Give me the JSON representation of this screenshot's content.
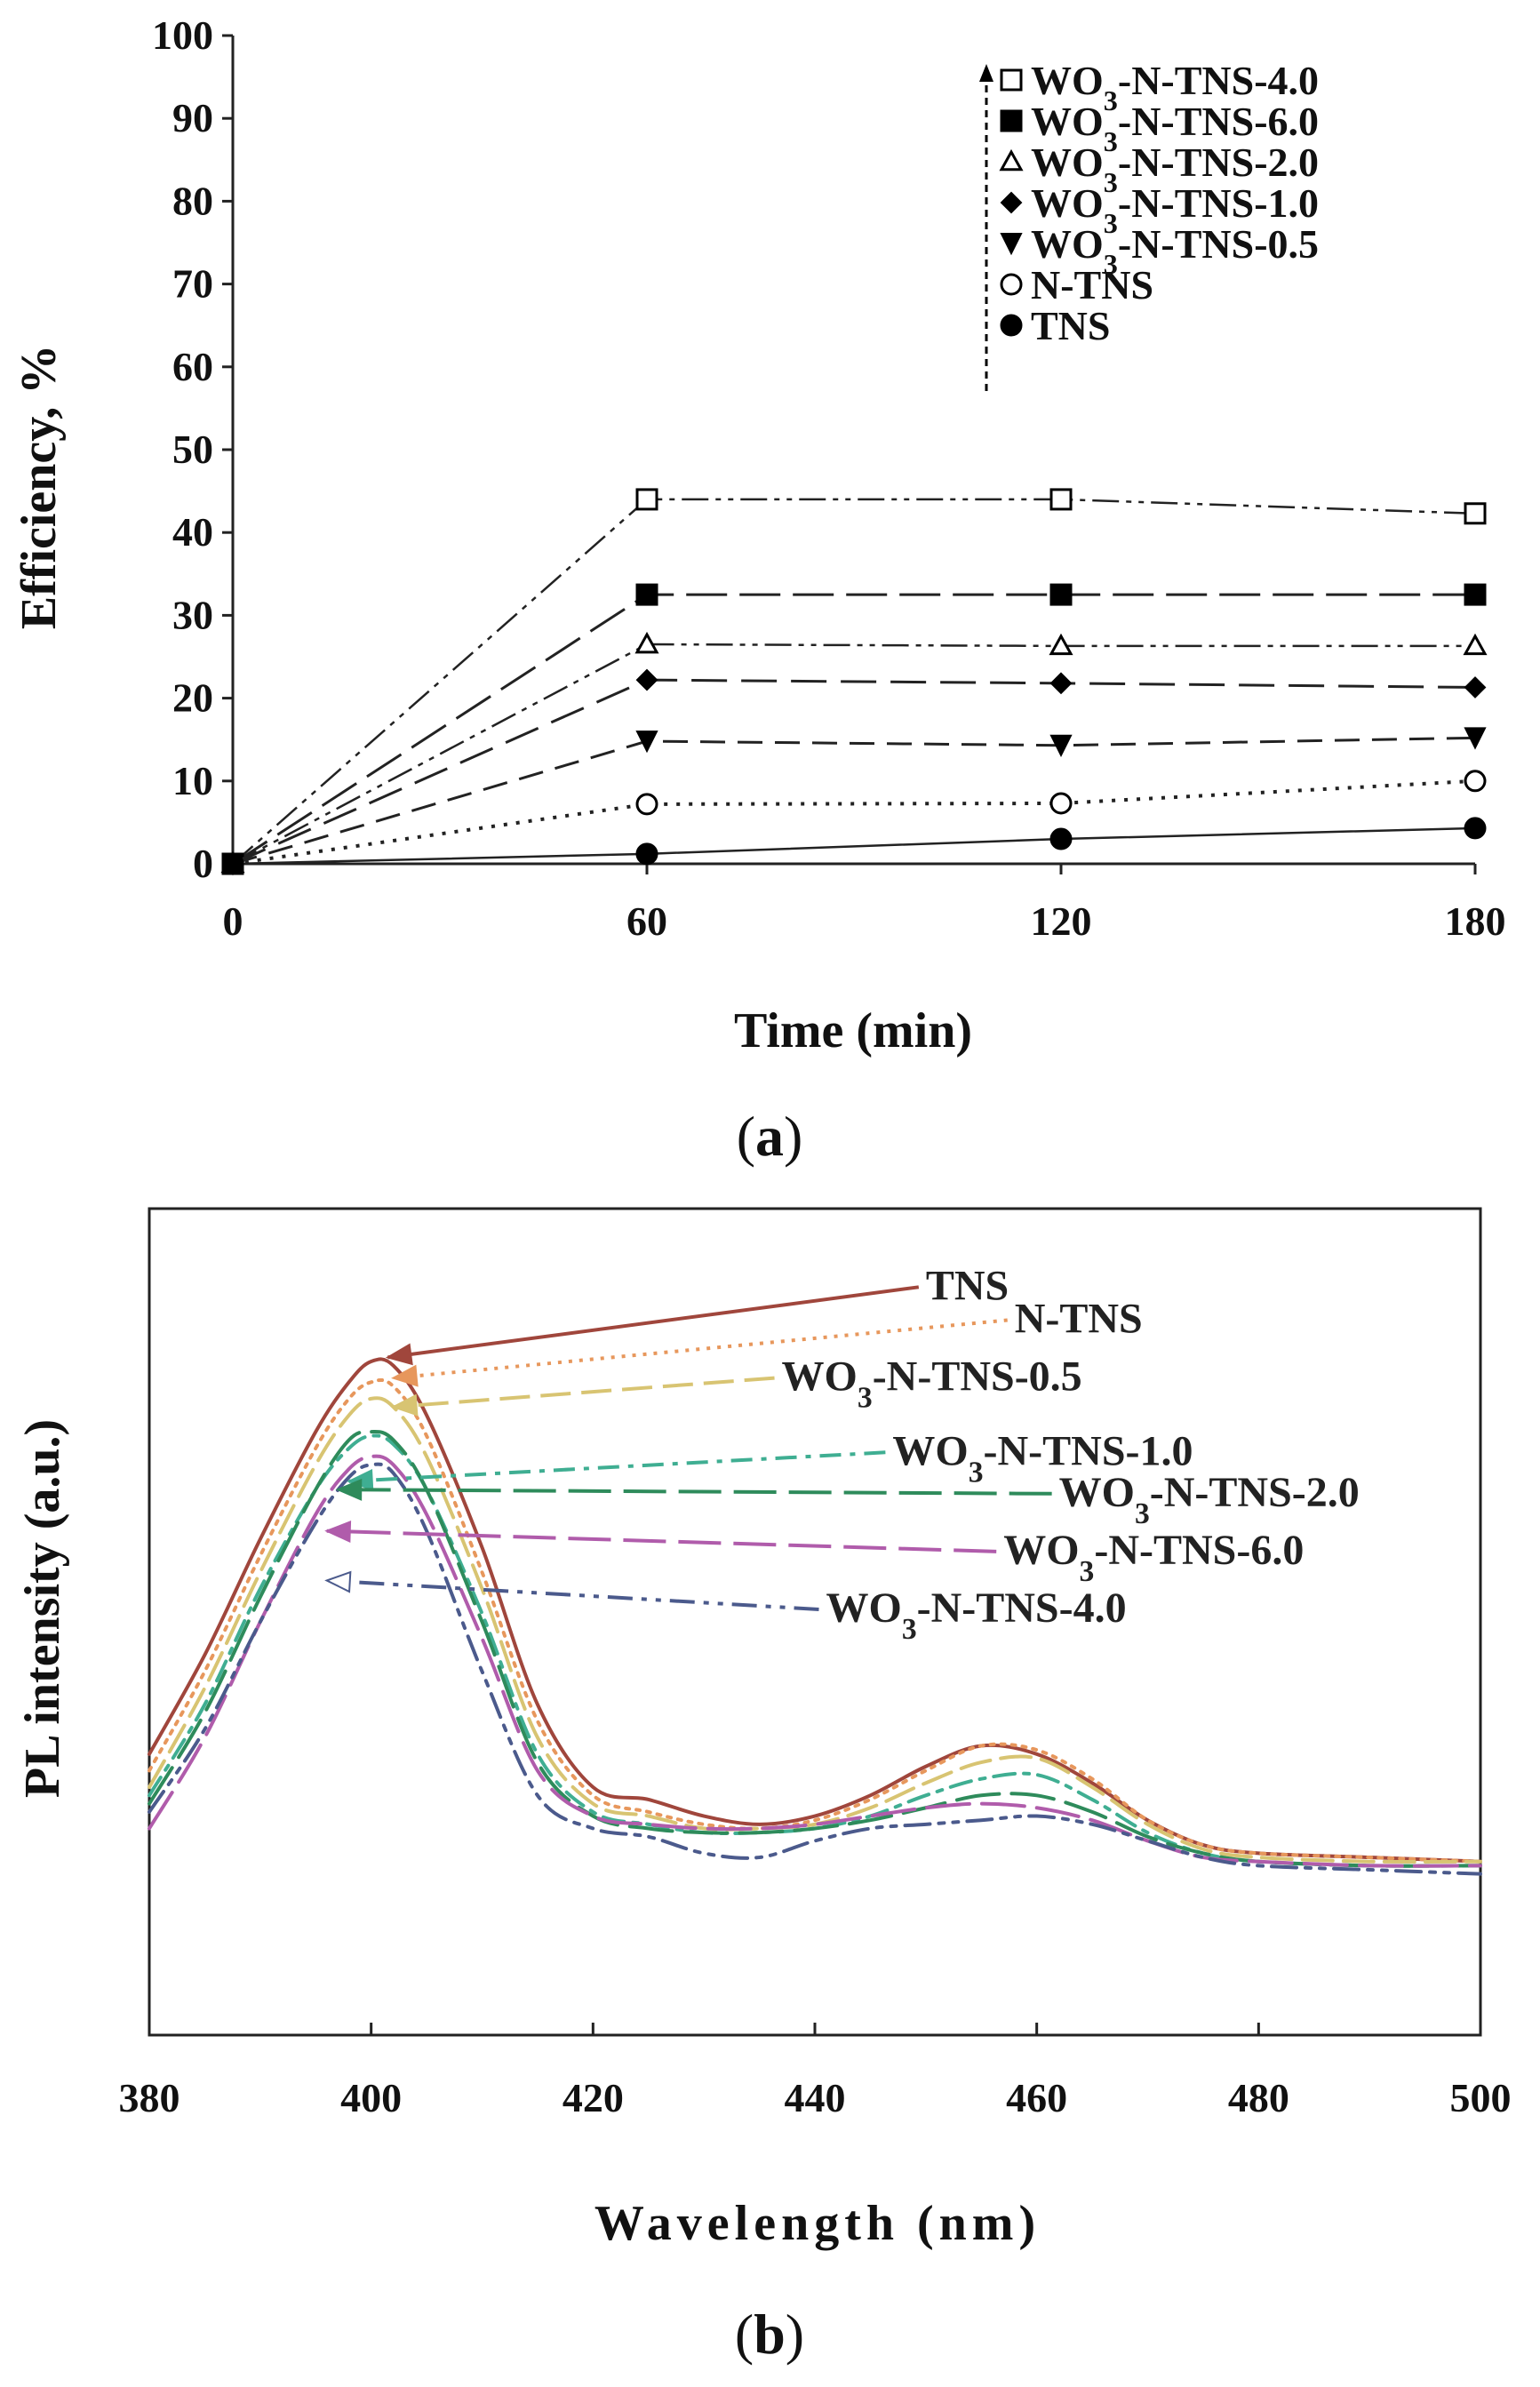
{
  "chart_data": [
    {
      "panel": "(a)",
      "type": "line",
      "xlabel": "Time (min)",
      "ylabel": "Efficiency, %",
      "x": [
        0,
        60,
        120,
        180
      ],
      "xticks": [
        "0",
        "60",
        "120",
        "180"
      ],
      "xlim": [
        0,
        180
      ],
      "ylim": [
        0,
        100
      ],
      "yticks": [
        "0",
        "10",
        "20",
        "30",
        "40",
        "50",
        "60",
        "70",
        "80",
        "90",
        "100"
      ],
      "grid": false,
      "legend_position": "top-right",
      "series": [
        {
          "name": "WO3-N-TNS-4.0",
          "legend_main": "WO",
          "legend_sub": "3",
          "legend_rest": "-N-TNS-4.0",
          "values": [
            0,
            44,
            44,
            42.3
          ],
          "marker": "square-open",
          "color": "#222222"
        },
        {
          "name": "WO3-N-TNS-6.0",
          "legend_main": "WO",
          "legend_sub": "3",
          "legend_rest": "-N-TNS-6.0",
          "values": [
            0,
            32.5,
            32.5,
            32.5
          ],
          "marker": "square-filled",
          "color": "#222222"
        },
        {
          "name": "WO3-N-TNS-2.0",
          "legend_main": "WO",
          "legend_sub": "3",
          "legend_rest": "-N-TNS-2.0",
          "values": [
            0,
            26.5,
            26.3,
            26.3
          ],
          "marker": "triangle-open",
          "color": "#222222"
        },
        {
          "name": "WO3-N-TNS-1.0",
          "legend_main": "WO",
          "legend_sub": "3",
          "legend_rest": "-N-TNS-1.0",
          "values": [
            0,
            22.2,
            21.8,
            21.3
          ],
          "marker": "diamond-filled",
          "color": "#222222"
        },
        {
          "name": "WO3-N-TNS-0.5",
          "legend_main": "WO",
          "legend_sub": "3",
          "legend_rest": "-N-TNS-0.5",
          "values": [
            0,
            14.8,
            14.3,
            15.2
          ],
          "marker": "triangle-down-filled",
          "color": "#222222"
        },
        {
          "name": "N-TNS",
          "legend_main": "N-TNS",
          "legend_sub": "",
          "legend_rest": "",
          "values": [
            0,
            7.2,
            7.3,
            10
          ],
          "marker": "circle-open",
          "color": "#222222"
        },
        {
          "name": "TNS",
          "legend_main": "TNS",
          "legend_sub": "",
          "legend_rest": "",
          "values": [
            0,
            1.2,
            3,
            4.3
          ],
          "marker": "circle-filled",
          "color": "#222222"
        }
      ]
    },
    {
      "panel": "(b)",
      "type": "line",
      "xlabel": "Wavelength (nm)",
      "ylabel": "PL intensity (a.u.)",
      "xlim": [
        380,
        500
      ],
      "xticks": [
        "380",
        "400",
        "420",
        "440",
        "460",
        "480",
        "500"
      ],
      "ylim": [
        0,
        100
      ],
      "grid": false,
      "series": [
        {
          "name": "TNS",
          "color": "#a0463c",
          "label_main": "TNS",
          "label_sub": "",
          "label_rest": "",
          "label_at": [
            450,
            89
          ],
          "arrow_to": [
            401.5,
            82
          ],
          "x": [
            380,
            385,
            390,
            395,
            398,
            400,
            402,
            405,
            410,
            415,
            420,
            425,
            430,
            435,
            440,
            445,
            450,
            455,
            460,
            465,
            470,
            475,
            480,
            490,
            500
          ],
          "y": [
            34,
            46,
            60,
            73,
            79,
            81.5,
            81,
            75,
            59,
            40,
            30,
            28.5,
            26.5,
            25.5,
            26.5,
            29,
            32.5,
            35,
            34,
            30.5,
            26,
            23,
            22,
            21.5,
            21
          ]
        },
        {
          "name": "N-TNS",
          "color": "#e7975c",
          "label_main": "N-TNS",
          "label_sub": "",
          "label_rest": "",
          "label_at": [
            458,
            85
          ],
          "arrow_to": [
            402,
            79.5
          ],
          "x": [
            380,
            385,
            390,
            395,
            398,
            400,
            402,
            405,
            410,
            415,
            420,
            425,
            430,
            435,
            440,
            445,
            450,
            455,
            460,
            465,
            470,
            475,
            480,
            490,
            500
          ],
          "y": [
            32,
            44,
            58,
            71,
            77,
            79,
            78.5,
            72.5,
            56,
            38,
            29,
            27,
            25.5,
            25,
            26,
            28.5,
            32,
            35,
            34.5,
            31,
            26,
            23,
            22,
            21.5,
            21
          ]
        },
        {
          "name": "WO3-N-TNS-0.5",
          "color": "#d8c472",
          "label_main": "WO",
          "label_sub": "3",
          "label_rest": "-N-TNS-0.5",
          "label_at": [
            437,
            78
          ],
          "arrow_to": [
            402,
            76
          ],
          "x": [
            380,
            385,
            390,
            395,
            398,
            400,
            402,
            405,
            410,
            415,
            420,
            425,
            430,
            435,
            440,
            445,
            450,
            455,
            460,
            465,
            470,
            475,
            480,
            490,
            500
          ],
          "y": [
            30,
            42,
            56,
            69,
            75,
            77,
            76,
            70,
            54,
            36,
            28,
            26.5,
            25,
            25,
            25.5,
            27.5,
            30.5,
            33,
            33.5,
            30,
            25.5,
            22.5,
            21.5,
            21,
            21
          ]
        },
        {
          "name": "WO3-N-TNS-1.0",
          "color": "#3fae92",
          "label_main": "WO",
          "label_sub": "3",
          "label_rest": "-N-TNS-1.0",
          "label_at": [
            447,
            69
          ],
          "arrow_to": [
            398,
            67
          ],
          "x": [
            380,
            385,
            390,
            395,
            398,
            400,
            402,
            405,
            410,
            415,
            420,
            425,
            430,
            435,
            440,
            445,
            450,
            455,
            460,
            465,
            470,
            475,
            480,
            490,
            500
          ],
          "y": [
            29,
            40,
            54,
            66,
            71,
            72.5,
            71.5,
            66,
            51,
            34,
            27,
            25.5,
            24.5,
            24.5,
            25,
            26.5,
            29,
            31,
            31.5,
            28.5,
            24.5,
            22,
            21,
            20.5,
            20.5
          ]
        },
        {
          "name": "WO3-N-TNS-2.0",
          "color": "#2e8b5b",
          "label_main": "WO",
          "label_sub": "3",
          "label_rest": "-N-TNS-2.0",
          "label_at": [
            462,
            64
          ],
          "arrow_to": [
            397,
            66
          ],
          "x": [
            380,
            385,
            390,
            395,
            398,
            400,
            402,
            405,
            410,
            415,
            420,
            425,
            430,
            435,
            440,
            445,
            450,
            455,
            460,
            465,
            470,
            475,
            480,
            490,
            500
          ],
          "y": [
            28,
            39,
            53,
            66,
            72,
            73,
            72,
            66,
            50,
            33,
            26.5,
            25,
            24.5,
            24.5,
            25,
            26,
            27.5,
            29,
            29,
            27,
            24,
            22,
            21,
            20.5,
            20.5
          ]
        },
        {
          "name": "WO3-N-TNS-6.0",
          "color": "#b05cab",
          "label_main": "WO",
          "label_sub": "3",
          "label_rest": "-N-TNS-6.0",
          "label_at": [
            457,
            57
          ],
          "arrow_to": [
            396,
            61
          ],
          "x": [
            380,
            385,
            390,
            395,
            398,
            400,
            402,
            405,
            410,
            415,
            420,
            425,
            430,
            435,
            440,
            445,
            450,
            455,
            460,
            465,
            470,
            475,
            480,
            490,
            500
          ],
          "y": [
            25,
            36,
            50,
            63,
            68.5,
            70,
            69,
            63,
            48,
            32,
            26.5,
            25.5,
            25,
            25,
            25.5,
            26.5,
            27.5,
            28,
            27.5,
            26,
            23.5,
            21.5,
            21,
            20.5,
            20.5
          ]
        },
        {
          "name": "WO3-N-TNS-4.0",
          "color": "#4b5a8c",
          "label_main": "WO",
          "label_sub": "3",
          "label_rest": "-N-TNS-4.0",
          "label_at": [
            441,
            50
          ],
          "arrow_to": [
            396,
            55
          ],
          "x": [
            380,
            385,
            390,
            395,
            398,
            400,
            402,
            405,
            410,
            415,
            420,
            425,
            430,
            435,
            440,
            445,
            450,
            455,
            460,
            465,
            470,
            475,
            480,
            490,
            500
          ],
          "y": [
            27,
            37,
            50,
            62,
            67.5,
            69,
            68,
            61,
            44,
            29,
            25,
            24,
            22,
            21.5,
            23.5,
            25,
            25.5,
            26,
            26.5,
            25.5,
            23.5,
            21.5,
            20.5,
            20,
            19.5
          ]
        }
      ]
    }
  ]
}
